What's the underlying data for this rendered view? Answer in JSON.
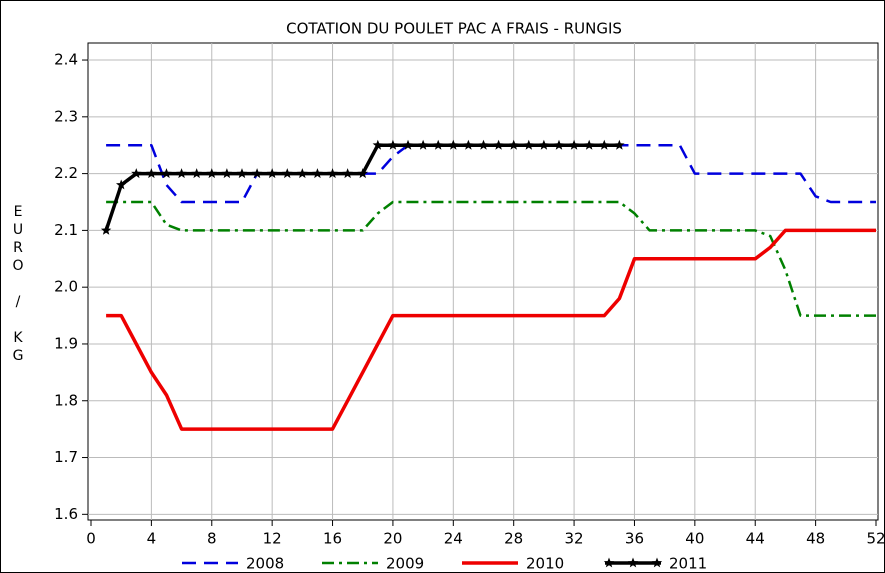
{
  "chart_data": {
    "type": "line",
    "title": "COTATION DU POULET PAC A FRAIS - RUNGIS",
    "y_label": "EURO / KG",
    "x": [
      1,
      2,
      3,
      4,
      5,
      6,
      7,
      8,
      9,
      10,
      11,
      12,
      13,
      14,
      15,
      16,
      17,
      18,
      19,
      20,
      21,
      22,
      23,
      24,
      25,
      26,
      27,
      28,
      29,
      30,
      31,
      32,
      33,
      34,
      35,
      36,
      37,
      38,
      39,
      40,
      41,
      42,
      43,
      44,
      45,
      46,
      47,
      48,
      49,
      50,
      51,
      52
    ],
    "xlim": [
      0,
      52
    ],
    "xticks": [
      0,
      4,
      8,
      12,
      16,
      20,
      24,
      28,
      32,
      36,
      40,
      44,
      48,
      52
    ],
    "ylim": [
      1.59,
      2.43
    ],
    "yticks": [
      {
        "value": 1.6,
        "label": "1.6"
      },
      1.7,
      1.8,
      1.9,
      {
        "value": 2.0,
        "label": "2.0"
      },
      2.1,
      2.2,
      2.3,
      2.4
    ],
    "grid": true,
    "legend": "bottom",
    "series": [
      {
        "name": "2008",
        "color": "#0000dd",
        "linestyle": "dashed",
        "values": [
          2.25,
          2.25,
          2.25,
          2.25,
          2.18,
          2.15,
          2.15,
          2.15,
          2.15,
          2.15,
          2.2,
          2.2,
          2.2,
          2.2,
          2.2,
          2.2,
          2.2,
          2.2,
          2.2,
          2.23,
          2.25,
          2.25,
          2.25,
          2.25,
          2.25,
          2.25,
          2.25,
          2.25,
          2.25,
          2.25,
          2.25,
          2.25,
          2.25,
          2.25,
          2.25,
          2.25,
          2.25,
          2.25,
          2.25,
          2.2,
          2.2,
          2.2,
          2.2,
          2.2,
          2.2,
          2.2,
          2.2,
          2.16,
          2.15,
          2.15,
          2.15,
          2.15
        ]
      },
      {
        "name": "2009",
        "color": "#008000",
        "linestyle": "dashdot",
        "values": [
          2.15,
          2.15,
          2.15,
          2.15,
          2.11,
          2.1,
          2.1,
          2.1,
          2.1,
          2.1,
          2.1,
          2.1,
          2.1,
          2.1,
          2.1,
          2.1,
          2.1,
          2.1,
          2.13,
          2.15,
          2.15,
          2.15,
          2.15,
          2.15,
          2.15,
          2.15,
          2.15,
          2.15,
          2.15,
          2.15,
          2.15,
          2.15,
          2.15,
          2.15,
          2.15,
          2.13,
          2.1,
          2.1,
          2.1,
          2.1,
          2.1,
          2.1,
          2.1,
          2.1,
          2.09,
          2.03,
          1.95,
          1.95,
          1.95,
          1.95,
          1.95,
          1.95
        ]
      },
      {
        "name": "2010",
        "color": "#ee0000",
        "linestyle": "solid",
        "values": [
          1.95,
          1.95,
          1.9,
          1.85,
          1.81,
          1.75,
          1.75,
          1.75,
          1.75,
          1.75,
          1.75,
          1.75,
          1.75,
          1.75,
          1.75,
          1.75,
          1.8,
          1.85,
          1.9,
          1.95,
          1.95,
          1.95,
          1.95,
          1.95,
          1.95,
          1.95,
          1.95,
          1.95,
          1.95,
          1.95,
          1.95,
          1.95,
          1.95,
          1.95,
          1.98,
          2.05,
          2.05,
          2.05,
          2.05,
          2.05,
          2.05,
          2.05,
          2.05,
          2.05,
          2.07,
          2.1,
          2.1,
          2.1,
          2.1,
          2.1,
          2.1,
          2.1
        ]
      },
      {
        "name": "2011",
        "color": "#000000",
        "linestyle": "solid",
        "marker": "star",
        "values": [
          2.1,
          2.18,
          2.2,
          2.2,
          2.2,
          2.2,
          2.2,
          2.2,
          2.2,
          2.2,
          2.2,
          2.2,
          2.2,
          2.2,
          2.2,
          2.2,
          2.2,
          2.2,
          2.25,
          2.25,
          2.25,
          2.25,
          2.25,
          2.25,
          2.25,
          2.25,
          2.25,
          2.25,
          2.25,
          2.25,
          2.25,
          2.25,
          2.25,
          2.25,
          2.25,
          null,
          null,
          null,
          null,
          null,
          null,
          null,
          null,
          null,
          null,
          null,
          null,
          null,
          null,
          null,
          null,
          null
        ]
      }
    ]
  }
}
